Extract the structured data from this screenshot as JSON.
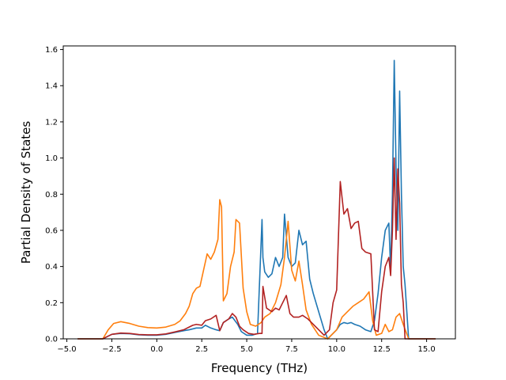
{
  "chart_data": {
    "type": "line",
    "title": "",
    "xlabel": "Frequency (THz)",
    "ylabel": "Partial Density of States",
    "xlim": [
      -5.2,
      16.6
    ],
    "ylim": [
      0.0,
      1.62
    ],
    "xticks": [
      -5.0,
      -2.5,
      0.0,
      2.5,
      5.0,
      7.5,
      10.0,
      12.5,
      15.0
    ],
    "xtick_labels": [
      "−5.0",
      "−2.5",
      "0.0",
      "2.5",
      "5.0",
      "7.5",
      "10.0",
      "12.5",
      "15.0"
    ],
    "yticks": [
      0.0,
      0.2,
      0.4,
      0.6,
      0.8,
      1.0,
      1.2,
      1.4,
      1.6
    ],
    "ytick_labels": [
      "0.0",
      "0.2",
      "0.4",
      "0.6",
      "0.8",
      "1.0",
      "1.2",
      "1.4",
      "1.6"
    ],
    "grid": false,
    "legend": false,
    "series": [
      {
        "color": "#1f77b4",
        "x": [
          -4.4,
          -3.0,
          -2.8,
          -2.5,
          -2.0,
          -1.5,
          -1.0,
          -0.5,
          0.0,
          0.5,
          1.0,
          1.5,
          1.8,
          2.0,
          2.2,
          2.5,
          2.7,
          3.0,
          3.3,
          3.5,
          3.7,
          4.0,
          4.2,
          4.5,
          4.7,
          5.0,
          5.3,
          5.6,
          5.85,
          5.9,
          6.0,
          6.2,
          6.4,
          6.6,
          6.8,
          7.0,
          7.1,
          7.3,
          7.5,
          7.7,
          7.9,
          8.1,
          8.3,
          8.5,
          8.7,
          9.0,
          9.3,
          9.5,
          9.7,
          10.0,
          10.2,
          10.4,
          10.6,
          10.8,
          11.0,
          11.3,
          11.6,
          11.9,
          12.1,
          12.3,
          12.5,
          12.7,
          12.9,
          13.0,
          13.1,
          13.2,
          13.3,
          13.4,
          13.5,
          13.6,
          13.7,
          13.8,
          14.0,
          14.2,
          14.5,
          15.5
        ],
        "y": [
          0.0,
          0.0,
          0.01,
          0.025,
          0.03,
          0.028,
          0.022,
          0.02,
          0.02,
          0.025,
          0.035,
          0.045,
          0.05,
          0.055,
          0.06,
          0.06,
          0.075,
          0.06,
          0.05,
          0.045,
          0.09,
          0.11,
          0.12,
          0.08,
          0.04,
          0.02,
          0.02,
          0.03,
          0.66,
          0.45,
          0.37,
          0.34,
          0.36,
          0.45,
          0.4,
          0.45,
          0.69,
          0.45,
          0.4,
          0.42,
          0.6,
          0.52,
          0.54,
          0.33,
          0.25,
          0.15,
          0.05,
          0.0,
          0.02,
          0.05,
          0.08,
          0.09,
          0.085,
          0.09,
          0.08,
          0.07,
          0.05,
          0.04,
          0.1,
          0.25,
          0.45,
          0.6,
          0.64,
          0.38,
          0.8,
          1.54,
          0.95,
          0.6,
          1.37,
          0.8,
          0.4,
          0.3,
          0.0,
          0.0,
          0.0,
          0.0
        ]
      },
      {
        "color": "#ff7f0e",
        "x": [
          -4.4,
          -3.0,
          -2.7,
          -2.4,
          -2.0,
          -1.5,
          -1.0,
          -0.5,
          0.0,
          0.5,
          1.0,
          1.3,
          1.6,
          1.8,
          2.0,
          2.2,
          2.4,
          2.6,
          2.8,
          3.0,
          3.2,
          3.4,
          3.5,
          3.6,
          3.7,
          3.9,
          4.1,
          4.3,
          4.4,
          4.5,
          4.6,
          4.8,
          5.0,
          5.2,
          5.5,
          5.8,
          6.0,
          6.3,
          6.6,
          6.9,
          7.1,
          7.3,
          7.5,
          7.7,
          7.9,
          8.1,
          8.3,
          8.6,
          9.0,
          9.5,
          10.0,
          10.3,
          10.6,
          10.9,
          11.2,
          11.5,
          11.8,
          12.0,
          12.2,
          12.5,
          12.7,
          12.9,
          13.1,
          13.3,
          13.5,
          13.7,
          14.0,
          15.5
        ],
        "y": [
          0.0,
          0.0,
          0.05,
          0.085,
          0.095,
          0.085,
          0.07,
          0.062,
          0.06,
          0.065,
          0.08,
          0.1,
          0.14,
          0.18,
          0.25,
          0.28,
          0.29,
          0.38,
          0.47,
          0.44,
          0.48,
          0.55,
          0.77,
          0.73,
          0.21,
          0.25,
          0.4,
          0.48,
          0.66,
          0.65,
          0.64,
          0.28,
          0.15,
          0.08,
          0.07,
          0.09,
          0.12,
          0.14,
          0.2,
          0.3,
          0.45,
          0.65,
          0.38,
          0.32,
          0.43,
          0.3,
          0.16,
          0.08,
          0.02,
          0.0,
          0.05,
          0.12,
          0.15,
          0.18,
          0.2,
          0.22,
          0.26,
          0.1,
          0.02,
          0.03,
          0.08,
          0.04,
          0.05,
          0.12,
          0.14,
          0.08,
          0.0,
          0.0
        ]
      },
      {
        "color": "#b22222",
        "x": [
          -4.4,
          -3.0,
          -2.8,
          -2.5,
          -2.0,
          -1.5,
          -1.0,
          -0.5,
          0.0,
          0.5,
          1.0,
          1.5,
          1.8,
          2.0,
          2.2,
          2.5,
          2.7,
          3.0,
          3.3,
          3.5,
          3.7,
          4.0,
          4.2,
          4.4,
          4.6,
          4.8,
          5.1,
          5.4,
          5.7,
          5.85,
          5.9,
          6.1,
          6.4,
          6.6,
          6.8,
          7.0,
          7.2,
          7.4,
          7.6,
          7.9,
          8.1,
          8.4,
          8.7,
          9.0,
          9.3,
          9.6,
          9.8,
          10.0,
          10.2,
          10.4,
          10.6,
          10.8,
          11.0,
          11.2,
          11.4,
          11.6,
          11.9,
          12.1,
          12.3,
          12.5,
          12.7,
          12.9,
          13.0,
          13.1,
          13.2,
          13.3,
          13.4,
          13.5,
          13.6,
          13.7,
          13.8,
          14.0,
          15.5
        ],
        "y": [
          0.0,
          0.0,
          0.01,
          0.025,
          0.032,
          0.03,
          0.024,
          0.022,
          0.022,
          0.027,
          0.038,
          0.05,
          0.065,
          0.075,
          0.08,
          0.075,
          0.1,
          0.11,
          0.13,
          0.045,
          0.09,
          0.11,
          0.14,
          0.12,
          0.07,
          0.05,
          0.03,
          0.025,
          0.03,
          0.03,
          0.29,
          0.17,
          0.15,
          0.17,
          0.16,
          0.2,
          0.24,
          0.14,
          0.12,
          0.12,
          0.13,
          0.11,
          0.08,
          0.05,
          0.02,
          0.05,
          0.2,
          0.27,
          0.87,
          0.69,
          0.72,
          0.61,
          0.64,
          0.65,
          0.5,
          0.48,
          0.47,
          0.05,
          0.04,
          0.26,
          0.4,
          0.45,
          0.35,
          0.6,
          1.0,
          0.55,
          0.94,
          0.75,
          0.3,
          0.2,
          0.0,
          0.0,
          0.0
        ]
      }
    ]
  }
}
